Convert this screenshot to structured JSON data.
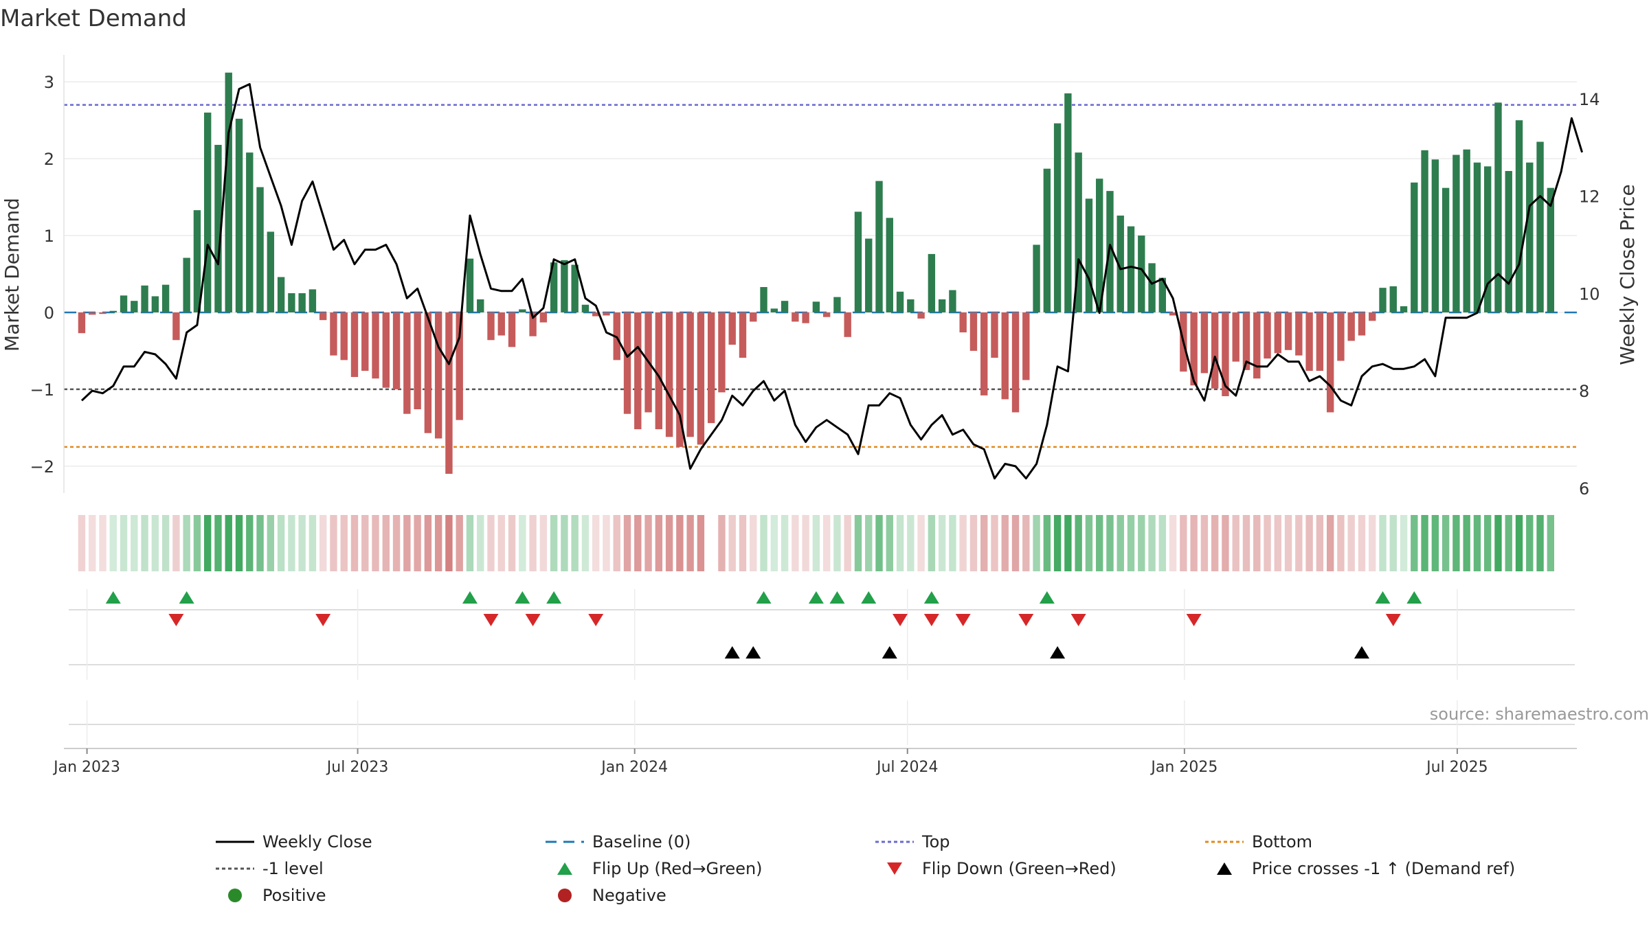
{
  "chart_data": {
    "type": "bar",
    "title": "Market Demand",
    "ylabel": "Market Demand",
    "y2label": "Weekly Close Price",
    "source": "source: sharemaestro.com",
    "ylim": [
      -2.35,
      3.35
    ],
    "y2lim": [
      5.9,
      14.9
    ],
    "yticks": [
      3,
      2,
      1,
      0,
      -1,
      -2
    ],
    "ytick_labels": [
      "3",
      "2",
      "1",
      "0",
      "−1",
      "−2"
    ],
    "y2ticks": [
      14,
      12,
      10,
      8,
      6
    ],
    "y2tick_labels": [
      "14",
      "12",
      "10",
      "8",
      "6"
    ],
    "x_range": [
      -1.7,
      142.5
    ],
    "xticks": [
      0.5,
      26.3,
      52.7,
      78.7,
      105.1,
      131.1
    ],
    "xtick_labels": [
      "Jan 2023",
      "Jul 2023",
      "Jan 2024",
      "Jul 2024",
      "Jan 2025",
      "Jul 2025"
    ],
    "top_level": 2.7,
    "bottom_level": -1.75,
    "minus1_level": -1,
    "demand": [
      -0.27,
      -0.03,
      -0.02,
      0.02,
      0.22,
      0.15,
      0.35,
      0.21,
      0.36,
      -0.36,
      0.71,
      1.33,
      2.6,
      2.18,
      3.12,
      2.52,
      2.08,
      1.63,
      1.05,
      0.46,
      0.25,
      0.25,
      0.3,
      -0.1,
      -0.56,
      -0.62,
      -0.84,
      -0.76,
      -0.86,
      -0.98,
      -1.0,
      -1.32,
      -1.26,
      -1.57,
      -1.64,
      -2.1,
      -1.4,
      0.7,
      0.17,
      -0.36,
      -0.3,
      -0.45,
      0.04,
      -0.31,
      -0.13,
      0.65,
      0.68,
      0.62,
      0.1,
      -0.05,
      -0.04,
      -0.62,
      -1.32,
      -1.52,
      -1.3,
      -1.52,
      -1.62,
      -1.75,
      -1.62,
      -1.72,
      -1.44,
      -1.04,
      -0.42,
      -0.59,
      -0.12,
      0.33,
      0.05,
      0.15,
      -0.12,
      -0.14,
      0.14,
      -0.06,
      0.2,
      -0.32,
      1.31,
      0.96,
      1.71,
      1.23,
      0.27,
      0.17,
      -0.08,
      0.76,
      0.17,
      0.29,
      -0.26,
      -0.5,
      -1.08,
      -0.59,
      -1.13,
      -1.3,
      -0.88,
      0.88,
      1.87,
      2.46,
      2.85,
      2.08,
      1.48,
      1.74,
      1.58,
      1.26,
      1.12,
      1.0,
      0.64,
      0.45,
      -0.04,
      -0.77,
      -0.95,
      -0.79,
      -0.99,
      -1.09,
      -0.64,
      -0.75,
      -0.86,
      -0.6,
      -0.53,
      -0.49,
      -0.56,
      -0.76,
      -0.76,
      -1.3,
      -0.63,
      -0.37,
      -0.3,
      -0.11,
      0.32,
      0.34,
      0.08,
      1.69,
      2.11,
      1.99,
      1.62,
      2.05,
      2.12,
      1.95,
      1.9,
      2.73,
      1.84,
      2.5,
      1.95,
      2.22,
      1.62
    ],
    "close": [
      7.8,
      8.0,
      7.95,
      8.1,
      8.5,
      8.5,
      8.8,
      8.75,
      8.55,
      8.25,
      9.2,
      9.35,
      11.0,
      10.6,
      13.3,
      14.2,
      14.3,
      13.0,
      12.4,
      11.8,
      11.0,
      11.9,
      12.3,
      11.6,
      10.9,
      11.1,
      10.6,
      10.9,
      10.9,
      11.0,
      10.6,
      9.9,
      10.1,
      9.5,
      8.9,
      8.55,
      9.1,
      11.6,
      10.8,
      10.1,
      10.05,
      10.05,
      10.3,
      9.5,
      9.7,
      10.7,
      10.6,
      10.7,
      9.9,
      9.75,
      9.2,
      9.1,
      8.7,
      8.9,
      8.6,
      8.3,
      7.9,
      7.5,
      6.4,
      6.8,
      7.1,
      7.4,
      7.9,
      7.7,
      8.0,
      8.2,
      7.8,
      8.0,
      7.3,
      6.95,
      7.25,
      7.4,
      7.25,
      7.1,
      6.7,
      7.7,
      7.7,
      7.95,
      7.85,
      7.3,
      7.0,
      7.3,
      7.5,
      7.1,
      7.2,
      6.9,
      6.8,
      6.2,
      6.5,
      6.45,
      6.2,
      6.5,
      7.3,
      8.5,
      8.4,
      10.7,
      10.3,
      9.6,
      11.0,
      10.5,
      10.55,
      10.5,
      10.2,
      10.3,
      9.9,
      9.0,
      8.2,
      7.8,
      8.7,
      8.1,
      7.9,
      8.6,
      8.5,
      8.5,
      8.75,
      8.6,
      8.6,
      8.2,
      8.3,
      8.1,
      7.8,
      7.7,
      8.3,
      8.5,
      8.55,
      8.45,
      8.45,
      8.5,
      8.65,
      8.3,
      9.5,
      9.5,
      9.5,
      9.6,
      10.2,
      10.4,
      10.2,
      10.6,
      11.8,
      12.0,
      11.8,
      12.5,
      13.6,
      12.9
    ],
    "heat_strip_gap_after_index": 59,
    "flip_up_weeks": [
      3,
      10,
      37,
      42,
      45,
      65,
      70,
      72,
      75,
      81,
      92,
      124,
      127
    ],
    "flip_down_weeks": [
      9,
      23,
      39,
      43,
      49,
      78,
      81,
      84,
      90,
      95,
      106,
      125
    ],
    "price_cross_weeks": [
      62,
      64,
      77,
      93,
      122
    ],
    "legend": [
      {
        "label": "Weekly Close",
        "symbol": "line-solid",
        "color": "#000000"
      },
      {
        "label": "Baseline (0)",
        "symbol": "line-dashed",
        "color": "#1f77b4"
      },
      {
        "label": "Top",
        "symbol": "line-dotted",
        "color": "#6a6acf"
      },
      {
        "label": "Bottom",
        "symbol": "line-dotted",
        "color": "#e08a1e"
      },
      {
        "label": "-1 level",
        "symbol": "line-dotted",
        "color": "#555555"
      },
      {
        "label": "Flip Up (Red→Green)",
        "symbol": "triangle-up",
        "color": "#22a04a"
      },
      {
        "label": "Flip Down (Green→Red)",
        "symbol": "triangle-down",
        "color": "#d62728"
      },
      {
        "label": "Price crosses -1 ↑ (Demand ref)",
        "symbol": "triangle-up",
        "color": "#000000"
      },
      {
        "label": "Positive",
        "symbol": "circle",
        "color": "#2a8a2a"
      },
      {
        "label": "Negative",
        "symbol": "circle",
        "color": "#b22222"
      }
    ],
    "colors": {
      "positive_bar": "#2e7d4f",
      "negative_bar": "#c65b5b",
      "strip_green_rgb": "46,160,80",
      "strip_red_rgb": "200,95,95"
    }
  }
}
